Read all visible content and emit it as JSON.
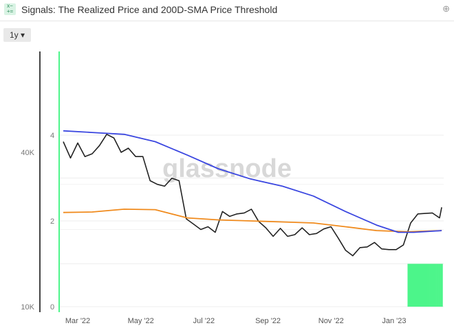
{
  "header": {
    "title": "Signals: The Realized Price and 200D-SMA Price Threshold",
    "logo_icon": "formula-icon",
    "zoom_icon": "zoom-in-icon"
  },
  "controls": {
    "range": "1y"
  },
  "watermark": "glassnode",
  "chart_data": {
    "type": "line",
    "title": "Signals: The Realized Price and 200D-SMA Price Threshold",
    "x_ticks": [
      "Mar '22",
      "May '22",
      "Jul '22",
      "Sep '22",
      "Nov '22",
      "Jan '23"
    ],
    "x_tick_dates": [
      "2022-03-01",
      "2022-05-01",
      "2022-07-01",
      "2022-09-01",
      "2022-11-01",
      "2023-01-01"
    ],
    "y_left": {
      "ticks": [
        "0",
        "2",
        "4"
      ],
      "range": [
        0,
        4
      ]
    },
    "y_right_price": {
      "ticks": [
        "10K",
        "40K"
      ],
      "scale": "log",
      "range": [
        10000,
        40000
      ]
    },
    "colors": {
      "price": "#222222",
      "realized": "#f08a1c",
      "sma200": "#3a46e0",
      "signal": "#4cf58a"
    },
    "series": [
      {
        "key": "price",
        "axis": "price",
        "points": [
          [
            "2022-02-15",
            44000
          ],
          [
            "2022-02-22",
            38000
          ],
          [
            "2022-03-01",
            43500
          ],
          [
            "2022-03-08",
            38500
          ],
          [
            "2022-03-15",
            39500
          ],
          [
            "2022-03-22",
            42500
          ],
          [
            "2022-03-29",
            47000
          ],
          [
            "2022-04-05",
            45500
          ],
          [
            "2022-04-12",
            40000
          ],
          [
            "2022-04-19",
            41500
          ],
          [
            "2022-04-26",
            38500
          ],
          [
            "2022-05-03",
            38500
          ],
          [
            "2022-05-10",
            31000
          ],
          [
            "2022-05-17",
            30000
          ],
          [
            "2022-05-24",
            29500
          ],
          [
            "2022-05-31",
            31700
          ],
          [
            "2022-06-07",
            31000
          ],
          [
            "2022-06-14",
            22000
          ],
          [
            "2022-06-21",
            21000
          ],
          [
            "2022-06-28",
            20000
          ],
          [
            "2022-07-05",
            20500
          ],
          [
            "2022-07-12",
            19500
          ],
          [
            "2022-07-19",
            23500
          ],
          [
            "2022-07-26",
            22500
          ],
          [
            "2022-08-02",
            23000
          ],
          [
            "2022-08-09",
            23200
          ],
          [
            "2022-08-16",
            24000
          ],
          [
            "2022-08-23",
            21500
          ],
          [
            "2022-08-30",
            20300
          ],
          [
            "2022-09-06",
            18800
          ],
          [
            "2022-09-13",
            20200
          ],
          [
            "2022-09-20",
            18800
          ],
          [
            "2022-09-27",
            19100
          ],
          [
            "2022-10-04",
            20300
          ],
          [
            "2022-10-11",
            19100
          ],
          [
            "2022-10-18",
            19300
          ],
          [
            "2022-10-25",
            20100
          ],
          [
            "2022-11-01",
            20500
          ],
          [
            "2022-11-08",
            18500
          ],
          [
            "2022-11-15",
            16600
          ],
          [
            "2022-11-22",
            15800
          ],
          [
            "2022-11-29",
            17000
          ],
          [
            "2022-12-06",
            17100
          ],
          [
            "2022-12-13",
            17800
          ],
          [
            "2022-12-20",
            16800
          ],
          [
            "2022-12-27",
            16700
          ],
          [
            "2023-01-03",
            16700
          ],
          [
            "2023-01-10",
            17400
          ],
          [
            "2023-01-17",
            21200
          ],
          [
            "2023-01-24",
            23000
          ],
          [
            "2023-01-31",
            23100
          ],
          [
            "2023-02-07",
            23200
          ],
          [
            "2023-02-14",
            22200
          ],
          [
            "2023-02-16",
            24400
          ]
        ]
      },
      {
        "key": "realized",
        "axis": "price",
        "points": [
          [
            "2022-02-15",
            23300
          ],
          [
            "2022-03-15",
            23400
          ],
          [
            "2022-04-15",
            24000
          ],
          [
            "2022-05-15",
            23900
          ],
          [
            "2022-06-15",
            22200
          ],
          [
            "2022-07-15",
            21800
          ],
          [
            "2022-08-15",
            21600
          ],
          [
            "2022-09-15",
            21400
          ],
          [
            "2022-10-15",
            21200
          ],
          [
            "2022-11-15",
            20500
          ],
          [
            "2022-12-15",
            19800
          ],
          [
            "2023-01-15",
            19600
          ],
          [
            "2023-02-16",
            19800
          ]
        ]
      },
      {
        "key": "sma200",
        "axis": "price",
        "points": [
          [
            "2022-02-15",
            48500
          ],
          [
            "2022-03-15",
            47800
          ],
          [
            "2022-04-15",
            47000
          ],
          [
            "2022-05-15",
            44000
          ],
          [
            "2022-06-15",
            39000
          ],
          [
            "2022-07-15",
            34500
          ],
          [
            "2022-08-15",
            31500
          ],
          [
            "2022-09-15",
            29500
          ],
          [
            "2022-10-15",
            27000
          ],
          [
            "2022-11-15",
            23500
          ],
          [
            "2022-12-15",
            20800
          ],
          [
            "2023-01-05",
            19500
          ],
          [
            "2023-01-20",
            19500
          ],
          [
            "2023-02-16",
            19800
          ]
        ]
      },
      {
        "key": "signal",
        "axis": "left",
        "type": "bar",
        "start": "2023-01-14",
        "end": "2023-02-16",
        "value": 1
      }
    ]
  }
}
